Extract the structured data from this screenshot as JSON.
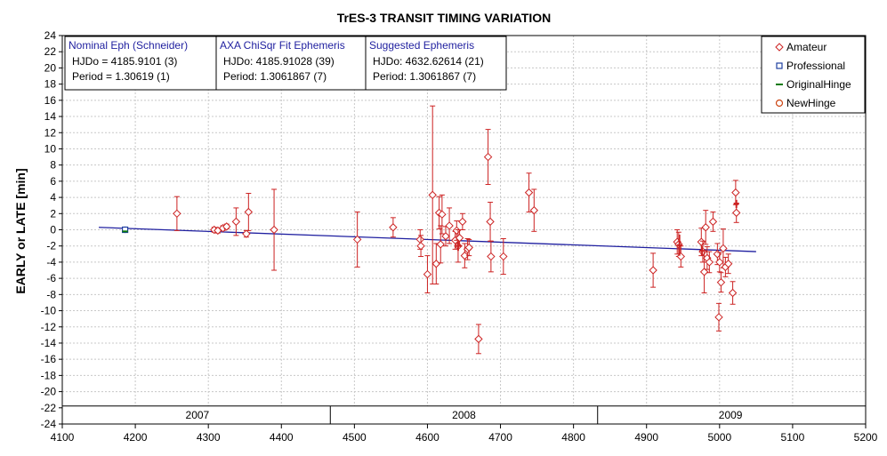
{
  "chart_data": {
    "type": "scatter",
    "title": "TrES-3 TRANSIT TIMING VARIATION",
    "ylabel": "EARLY or LATE [min]",
    "xlim": [
      4100,
      5200
    ],
    "ylim": [
      -24,
      24
    ],
    "x_ticks": [
      4100,
      4200,
      4300,
      4400,
      4500,
      4600,
      4700,
      4800,
      4900,
      5000,
      5100,
      5200
    ],
    "y_ticks": [
      24,
      22,
      20,
      18,
      16,
      14,
      12,
      10,
      8,
      6,
      4,
      2,
      0,
      -2,
      -4,
      -6,
      -8,
      -10,
      -12,
      -14,
      -16,
      -18,
      -20,
      -22,
      -24
    ],
    "grid": true,
    "years": [
      {
        "label": "2007",
        "center": 4285,
        "start": 4100,
        "end": 4467
      },
      {
        "label": "2008",
        "center": 4650,
        "start": 4467,
        "end": 4833
      },
      {
        "label": "2009",
        "center": 5015,
        "start": 4833,
        "end": 5200
      }
    ],
    "info_boxes": [
      {
        "title": "Nominal Eph (Schneider)",
        "lines": [
          "HJDo = 4185.9101 (3)",
          "Period = 1.30619 (1)"
        ]
      },
      {
        "title": "AXA ChiSqr Fit Ephemeris",
        "lines": [
          "HJDo:  4185.91028 (39)",
          "Period: 1.3061867 (7)"
        ]
      },
      {
        "title": "Suggested Ephemeris",
        "lines": [
          "HJDo:  4632.62614 (21)",
          "Period: 1.3061867 (7)"
        ]
      }
    ],
    "legend": {
      "position": "top-right",
      "items": [
        {
          "label": "Amateur",
          "marker": "diamond",
          "color": "#cc2222"
        },
        {
          "label": "Professional",
          "marker": "square",
          "color": "#1f3fa0"
        },
        {
          "label": "OriginalHinge",
          "marker": "line",
          "color": "#0a7a0a"
        },
        {
          "label": "NewHinge",
          "marker": "circle",
          "color": "#cc4411"
        }
      ]
    },
    "fit_line": {
      "color": "#1f1fa0",
      "x": [
        4150,
        5050
      ],
      "y": [
        0.3,
        -2.7
      ]
    },
    "series": [
      {
        "name": "Amateur",
        "color": "#cc2222",
        "points": [
          {
            "x": 4257,
            "y": 2.0,
            "err": 2.1
          },
          {
            "x": 4308,
            "y": 0.0,
            "err": 0.3
          },
          {
            "x": 4313,
            "y": -0.1,
            "err": 0.3
          },
          {
            "x": 4320,
            "y": 0.2,
            "err": 0.3
          },
          {
            "x": 4325,
            "y": 0.4,
            "err": 0.3
          },
          {
            "x": 4338,
            "y": 1.0,
            "err": 1.7
          },
          {
            "x": 4352,
            "y": -0.5,
            "err": 0.4
          },
          {
            "x": 4355,
            "y": 2.2,
            "err": 2.3
          },
          {
            "x": 4390,
            "y": 0.0,
            "err": 5.0
          },
          {
            "x": 4504,
            "y": -1.2,
            "err": 3.4
          },
          {
            "x": 4553,
            "y": 0.3,
            "err": 1.2
          },
          {
            "x": 4590,
            "y": -1.2,
            "err": 1.2
          },
          {
            "x": 4591,
            "y": -2.0,
            "err": 1.3
          },
          {
            "x": 4600,
            "y": -5.5,
            "err": 2.3
          },
          {
            "x": 4607,
            "y": 4.3,
            "err": 11.0
          },
          {
            "x": 4612,
            "y": -4.2,
            "err": 2.5
          },
          {
            "x": 4616,
            "y": 2.1,
            "err": 2.0
          },
          {
            "x": 4618,
            "y": -1.8,
            "err": 2.3
          },
          {
            "x": 4620,
            "y": 1.9,
            "err": 2.4
          },
          {
            "x": 4625,
            "y": -0.8,
            "err": 1.2
          },
          {
            "x": 4630,
            "y": 0.5,
            "err": 2.2
          },
          {
            "x": 4638,
            "y": -1.3,
            "err": 1.1
          },
          {
            "x": 4640,
            "y": -0.1,
            "err": 1.2
          },
          {
            "x": 4642,
            "y": -2.0,
            "err": 2.0
          },
          {
            "x": 4644,
            "y": -1.0,
            "err": 1.0
          },
          {
            "x": 4648,
            "y": 1.0,
            "err": 1.0
          },
          {
            "x": 4651,
            "y": -3.2,
            "err": 1.5
          },
          {
            "x": 4655,
            "y": -2.4,
            "err": 1.3
          },
          {
            "x": 4657,
            "y": -2.2,
            "err": 1.0
          },
          {
            "x": 4670,
            "y": -13.5,
            "err": 1.8
          },
          {
            "x": 4683,
            "y": 9.0,
            "err": 3.4
          },
          {
            "x": 4686,
            "y": 1.0,
            "err": 2.4
          },
          {
            "x": 4687,
            "y": -3.3,
            "err": 1.9
          },
          {
            "x": 4704,
            "y": -3.3,
            "err": 2.2
          },
          {
            "x": 4739,
            "y": 4.6,
            "err": 2.4
          },
          {
            "x": 4746,
            "y": 2.4,
            "err": 2.6
          },
          {
            "x": 4909,
            "y": -5.0,
            "err": 2.1
          },
          {
            "x": 4942,
            "y": -1.5,
            "err": 1.5
          },
          {
            "x": 4944,
            "y": -1.8,
            "err": 1.5
          },
          {
            "x": 4947,
            "y": -3.3,
            "err": 1.3
          },
          {
            "x": 4975,
            "y": -1.5,
            "err": 1.7
          },
          {
            "x": 4977,
            "y": -2.7,
            "err": 1.3
          },
          {
            "x": 4979,
            "y": -5.2,
            "err": 2.6
          },
          {
            "x": 4981,
            "y": 0.3,
            "err": 2.1
          },
          {
            "x": 4983,
            "y": -3.5,
            "err": 1.4
          },
          {
            "x": 4986,
            "y": -4.0,
            "err": 1.3
          },
          {
            "x": 4991,
            "y": 1.0,
            "err": 1.2
          },
          {
            "x": 4997,
            "y": -3.0,
            "err": 1.3
          },
          {
            "x": 4999,
            "y": -10.8,
            "err": 1.7
          },
          {
            "x": 5000,
            "y": -4.0,
            "err": 1.2
          },
          {
            "x": 5002,
            "y": -6.5,
            "err": 1.2
          },
          {
            "x": 5005,
            "y": -2.3,
            "err": 2.4
          },
          {
            "x": 5008,
            "y": -4.6,
            "err": 1.2
          },
          {
            "x": 5012,
            "y": -4.2,
            "err": 1.2
          },
          {
            "x": 5018,
            "y": -7.8,
            "err": 1.4
          },
          {
            "x": 5022,
            "y": 4.6,
            "err": 1.5
          },
          {
            "x": 5023,
            "y": 2.1,
            "err": 1.2
          }
        ]
      },
      {
        "name": "Professional",
        "color": "#1f3fa0",
        "points": [
          {
            "x": 4186,
            "y": 0.0,
            "err": 0.4
          }
        ]
      },
      {
        "name": "OriginalHinge",
        "color": "#0a7a0a",
        "points": [
          {
            "x": 4186,
            "y": -0.2,
            "err": 0.2
          }
        ]
      },
      {
        "name": "NewHinge",
        "color": "#cc2222",
        "points": [
          {
            "x": 4642,
            "y": -2.0,
            "err": 0.6
          },
          {
            "x": 4945,
            "y": -1.9,
            "err": 1.3
          },
          {
            "x": 4976,
            "y": -2.6,
            "err": 0.6
          },
          {
            "x": 5023,
            "y": 3.2,
            "err": 0.5
          }
        ]
      }
    ]
  }
}
